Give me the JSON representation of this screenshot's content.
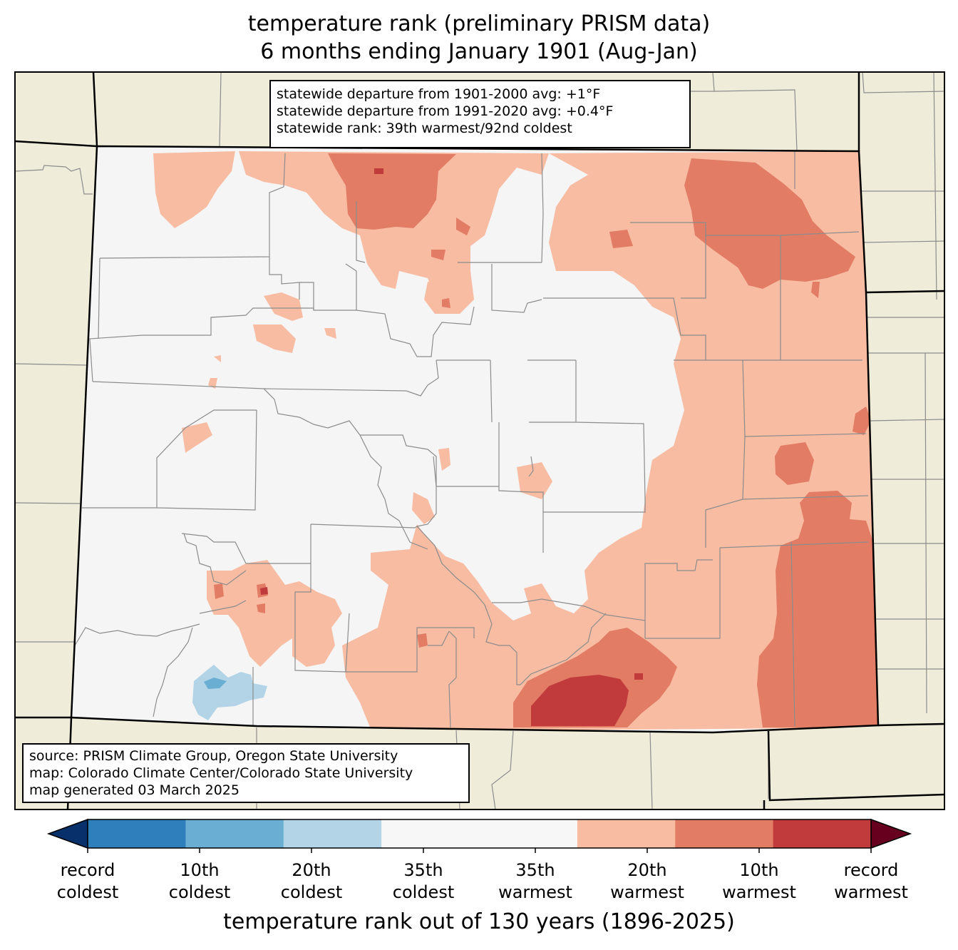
{
  "title": {
    "line1": "temperature rank (preliminary PRISM data)",
    "line2": "6 months ending January 1901 (Aug-Jan)"
  },
  "stats": {
    "line1": "statewide departure from 1901-2000 avg: +1°F",
    "line2": "statewide departure from 1991-2020 avg: +0.4°F",
    "line3": "statewide rank: 39th warmest/92nd coldest"
  },
  "source": {
    "line1": "source: PRISM Climate Group, Oregon State University",
    "line2": "map: Colorado Climate Center/Colorado State University",
    "line3": "map generated 03 March 2025"
  },
  "colorbar": {
    "title": "temperature rank out of 130 years (1896-2025)",
    "under_color": "#08306b",
    "over_color": "#67001f",
    "bins": [
      "#2f7fbc",
      "#6aaed4",
      "#b2d4e6",
      "#f7f7f7",
      "#f7f7f7",
      "#f8bca2",
      "#e27c65",
      "#c13b3c"
    ],
    "ticks": [
      {
        "top": "record",
        "bottom": "coldest"
      },
      {
        "top": "10th",
        "bottom": "coldest"
      },
      {
        "top": "20th",
        "bottom": "coldest"
      },
      {
        "top": "35th",
        "bottom": "coldest"
      },
      {
        "top": "35th",
        "bottom": "warmest"
      },
      {
        "top": "20th",
        "bottom": "warmest"
      },
      {
        "top": "10th",
        "bottom": "warmest"
      },
      {
        "top": "record",
        "bottom": "warmest"
      }
    ]
  },
  "map_colors": {
    "background_land": "#efedda",
    "state_fill": "#f5f5f5",
    "rank_35th_warmest": "#f8bca2",
    "rank_20th_warmest": "#e27c65",
    "rank_10th_warmest": "#c13b3c",
    "rank_35th_coldest": "#b2d4e6",
    "rank_20th_coldest": "#6aaed4",
    "county_line": "#8c8c8c",
    "state_line": "#000000"
  }
}
